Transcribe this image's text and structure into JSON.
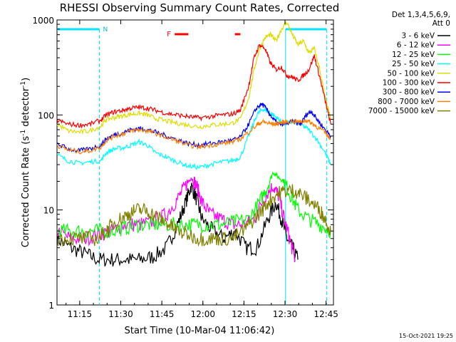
{
  "chart_data": {
    "type": "line",
    "title": "RHESSI Observing Summary Count Rates, Corrected",
    "xlabel": "Start Time (10-Mar-04 11:06:42)",
    "ylabel_main": "Corrected Count Rate (s",
    "ylabel_sup1": "-1",
    "ylabel_mid": " detector",
    "ylabel_sup2": "-1",
    "ylabel_end": ")",
    "y_scale": "log",
    "ylim": [
      1,
      1000
    ],
    "xlim_minutes": [
      0,
      101
    ],
    "x_ticks": [
      {
        "m": 8.3,
        "label": "11:15"
      },
      {
        "m": 23.3,
        "label": "11:30"
      },
      {
        "m": 38.3,
        "label": "11:45"
      },
      {
        "m": 53.3,
        "label": "12:00"
      },
      {
        "m": 68.3,
        "label": "12:15"
      },
      {
        "m": 83.3,
        "label": "12:30"
      },
      {
        "m": 98.3,
        "label": "12:45"
      }
    ],
    "y_ticks": [
      {
        "v": 1,
        "label": "1"
      },
      {
        "v": 10,
        "label": "10"
      },
      {
        "v": 100,
        "label": "100"
      },
      {
        "v": 1000,
        "label": "1000"
      }
    ],
    "legend_position": "right",
    "legend_header": [
      "Det 1,3,4,5,6,9,",
      "Att 0"
    ],
    "series": [
      {
        "name": "3 - 6 keV",
        "color": "#000000",
        "points": [
          [
            0,
            5
          ],
          [
            5,
            4
          ],
          [
            10,
            3.5
          ],
          [
            15,
            3
          ],
          [
            20,
            3
          ],
          [
            25,
            3
          ],
          [
            30,
            3
          ],
          [
            35,
            3.2
          ],
          [
            40,
            4
          ],
          [
            44,
            7
          ],
          [
            47,
            12
          ],
          [
            49,
            18
          ],
          [
            51,
            13
          ],
          [
            53,
            8
          ],
          [
            57,
            6
          ],
          [
            61,
            5
          ],
          [
            65,
            6
          ],
          [
            69,
            4
          ],
          [
            73,
            4
          ],
          [
            77,
            8
          ],
          [
            80,
            12
          ],
          [
            82,
            8
          ],
          [
            84,
            5
          ],
          [
            86,
            4
          ],
          [
            88,
            3
          ]
        ]
      },
      {
        "name": "6 - 12 keV",
        "color": "#ff00ff",
        "points": [
          [
            0,
            6
          ],
          [
            5,
            5
          ],
          [
            10,
            5
          ],
          [
            15,
            5.5
          ],
          [
            20,
            6
          ],
          [
            25,
            7
          ],
          [
            30,
            7
          ],
          [
            35,
            7.5
          ],
          [
            40,
            9
          ],
          [
            44,
            13
          ],
          [
            47,
            18
          ],
          [
            49,
            22
          ],
          [
            51,
            18
          ],
          [
            53,
            12
          ],
          [
            56,
            9
          ],
          [
            60,
            8
          ],
          [
            64,
            7
          ],
          [
            68,
            7
          ],
          [
            72,
            8
          ],
          [
            76,
            14
          ],
          [
            79,
            18
          ],
          [
            81,
            14
          ],
          [
            83,
            8
          ],
          [
            85,
            5
          ],
          [
            87,
            3
          ]
        ]
      },
      {
        "name": "12 - 25 keV",
        "color": "#00ff00",
        "points": [
          [
            0,
            6
          ],
          [
            5,
            6
          ],
          [
            10,
            6
          ],
          [
            15,
            6
          ],
          [
            20,
            6
          ],
          [
            25,
            6.5
          ],
          [
            30,
            7
          ],
          [
            35,
            7
          ],
          [
            40,
            7
          ],
          [
            45,
            7
          ],
          [
            50,
            7
          ],
          [
            55,
            7
          ],
          [
            60,
            7
          ],
          [
            65,
            7.5
          ],
          [
            70,
            8
          ],
          [
            74,
            12
          ],
          [
            77,
            18
          ],
          [
            79,
            25
          ],
          [
            81,
            22
          ],
          [
            83,
            20
          ],
          [
            85,
            15
          ],
          [
            88,
            10
          ],
          [
            92,
            8
          ],
          [
            96,
            7
          ],
          [
            100,
            6
          ]
        ]
      },
      {
        "name": "25 - 50 keV",
        "color": "#00ffff",
        "points": [
          [
            0,
            38
          ],
          [
            4,
            33
          ],
          [
            8,
            31
          ],
          [
            12,
            32
          ],
          [
            16,
            33
          ],
          [
            18,
            40
          ],
          [
            21,
            44
          ],
          [
            24,
            45
          ],
          [
            27,
            48
          ],
          [
            30,
            52
          ],
          [
            33,
            48
          ],
          [
            36,
            40
          ],
          [
            40,
            36
          ],
          [
            44,
            32
          ],
          [
            48,
            29
          ],
          [
            52,
            28
          ],
          [
            56,
            30
          ],
          [
            60,
            32
          ],
          [
            64,
            33
          ],
          [
            67,
            36
          ],
          [
            70,
            60
          ],
          [
            73,
            100
          ],
          [
            75,
            115
          ],
          [
            77,
            110
          ],
          [
            79,
            100
          ],
          [
            81,
            90
          ],
          [
            83,
            80
          ],
          [
            86,
            85
          ],
          [
            89,
            80
          ],
          [
            92,
            70
          ],
          [
            95,
            55
          ],
          [
            98,
            40
          ],
          [
            100,
            30
          ]
        ]
      },
      {
        "name": "50 - 100 keV",
        "color": "#dddd00",
        "points": [
          [
            0,
            80
          ],
          [
            4,
            68
          ],
          [
            8,
            66
          ],
          [
            12,
            68
          ],
          [
            16,
            76
          ],
          [
            18,
            90
          ],
          [
            21,
            94
          ],
          [
            24,
            98
          ],
          [
            27,
            102
          ],
          [
            30,
            104
          ],
          [
            33,
            100
          ],
          [
            36,
            92
          ],
          [
            40,
            86
          ],
          [
            44,
            82
          ],
          [
            48,
            78
          ],
          [
            52,
            75
          ],
          [
            56,
            78
          ],
          [
            60,
            80
          ],
          [
            64,
            82
          ],
          [
            67,
            90
          ],
          [
            70,
            150
          ],
          [
            72,
            300
          ],
          [
            74,
            500
          ],
          [
            76,
            650
          ],
          [
            78,
            700
          ],
          [
            80,
            600
          ],
          [
            82,
            800
          ],
          [
            84,
            950
          ],
          [
            86,
            700
          ],
          [
            88,
            550
          ],
          [
            90,
            600
          ],
          [
            92,
            450
          ],
          [
            94,
            500
          ],
          [
            96,
            300
          ],
          [
            98,
            150
          ],
          [
            100,
            90
          ]
        ]
      },
      {
        "name": "100 - 300 keV",
        "color": "#ff0000",
        "points": [
          [
            0,
            88
          ],
          [
            4,
            80
          ],
          [
            8,
            78
          ],
          [
            12,
            80
          ],
          [
            16,
            88
          ],
          [
            18,
            100
          ],
          [
            21,
            108
          ],
          [
            24,
            112
          ],
          [
            27,
            118
          ],
          [
            30,
            120
          ],
          [
            33,
            118
          ],
          [
            36,
            112
          ],
          [
            40,
            104
          ],
          [
            44,
            100
          ],
          [
            48,
            96
          ],
          [
            52,
            93
          ],
          [
            56,
            96
          ],
          [
            60,
            100
          ],
          [
            64,
            102
          ],
          [
            67,
            112
          ],
          [
            70,
            200
          ],
          [
            72,
            400
          ],
          [
            74,
            550
          ],
          [
            76,
            500
          ],
          [
            78,
            350
          ],
          [
            80,
            300
          ],
          [
            82,
            320
          ],
          [
            84,
            260
          ],
          [
            86,
            250
          ],
          [
            88,
            230
          ],
          [
            90,
            260
          ],
          [
            92,
            300
          ],
          [
            94,
            420
          ],
          [
            96,
            250
          ],
          [
            98,
            140
          ],
          [
            100,
            80
          ]
        ]
      },
      {
        "name": "300 - 800 keV",
        "color": "#0000ff",
        "points": [
          [
            0,
            50
          ],
          [
            4,
            44
          ],
          [
            8,
            42
          ],
          [
            12,
            44
          ],
          [
            16,
            48
          ],
          [
            18,
            56
          ],
          [
            21,
            62
          ],
          [
            24,
            65
          ],
          [
            27,
            70
          ],
          [
            30,
            72
          ],
          [
            33,
            70
          ],
          [
            36,
            66
          ],
          [
            40,
            60
          ],
          [
            44,
            55
          ],
          [
            48,
            50
          ],
          [
            52,
            48
          ],
          [
            56,
            50
          ],
          [
            60,
            52
          ],
          [
            64,
            54
          ],
          [
            67,
            58
          ],
          [
            70,
            80
          ],
          [
            73,
            120
          ],
          [
            75,
            130
          ],
          [
            77,
            110
          ],
          [
            79,
            90
          ],
          [
            81,
            80
          ],
          [
            83,
            80
          ],
          [
            86,
            85
          ],
          [
            89,
            80
          ],
          [
            91,
            100
          ],
          [
            93,
            110
          ],
          [
            95,
            90
          ],
          [
            98,
            70
          ],
          [
            100,
            60
          ]
        ]
      },
      {
        "name": "800 - 7000 keV",
        "color": "#ff8000",
        "points": [
          [
            0,
            48
          ],
          [
            4,
            43
          ],
          [
            8,
            41
          ],
          [
            12,
            42
          ],
          [
            16,
            46
          ],
          [
            18,
            54
          ],
          [
            21,
            60
          ],
          [
            24,
            63
          ],
          [
            27,
            68
          ],
          [
            30,
            70
          ],
          [
            33,
            68
          ],
          [
            36,
            64
          ],
          [
            40,
            58
          ],
          [
            44,
            53
          ],
          [
            48,
            48
          ],
          [
            52,
            46
          ],
          [
            56,
            48
          ],
          [
            60,
            50
          ],
          [
            64,
            52
          ],
          [
            67,
            56
          ],
          [
            70,
            66
          ],
          [
            73,
            78
          ],
          [
            75,
            85
          ],
          [
            77,
            82
          ],
          [
            79,
            80
          ],
          [
            81,
            82
          ],
          [
            83,
            84
          ],
          [
            86,
            86
          ],
          [
            89,
            84
          ],
          [
            91,
            88
          ],
          [
            93,
            82
          ],
          [
            95,
            75
          ],
          [
            98,
            65
          ],
          [
            100,
            55
          ]
        ]
      },
      {
        "name": "7000 - 15000 keV",
        "color": "#808000",
        "points": [
          [
            0,
            5
          ],
          [
            5,
            5
          ],
          [
            10,
            5
          ],
          [
            15,
            5
          ],
          [
            18,
            6
          ],
          [
            20,
            7
          ],
          [
            23,
            8
          ],
          [
            26,
            9
          ],
          [
            29,
            10
          ],
          [
            32,
            10
          ],
          [
            35,
            9
          ],
          [
            38,
            8
          ],
          [
            41,
            7
          ],
          [
            44,
            6
          ],
          [
            48,
            5.5
          ],
          [
            52,
            5
          ],
          [
            56,
            5
          ],
          [
            60,
            5
          ],
          [
            64,
            5
          ],
          [
            68,
            6
          ],
          [
            72,
            8
          ],
          [
            75,
            10
          ],
          [
            78,
            13
          ],
          [
            81,
            15
          ],
          [
            84,
            16
          ],
          [
            87,
            16
          ],
          [
            90,
            14
          ],
          [
            93,
            12
          ],
          [
            96,
            10
          ],
          [
            98,
            8
          ],
          [
            100,
            6
          ]
        ]
      }
    ],
    "attenuator_intervals": [
      {
        "start": 0,
        "end": 15.5,
        "label": "N"
      },
      {
        "start": 83.5,
        "end": 98.5,
        "label": ""
      }
    ],
    "flare_flag": {
      "label": "F",
      "intervals": [
        [
          43,
          48
        ],
        [
          65,
          67
        ]
      ]
    },
    "timestamp": "15-Oct-2021 19:25"
  }
}
